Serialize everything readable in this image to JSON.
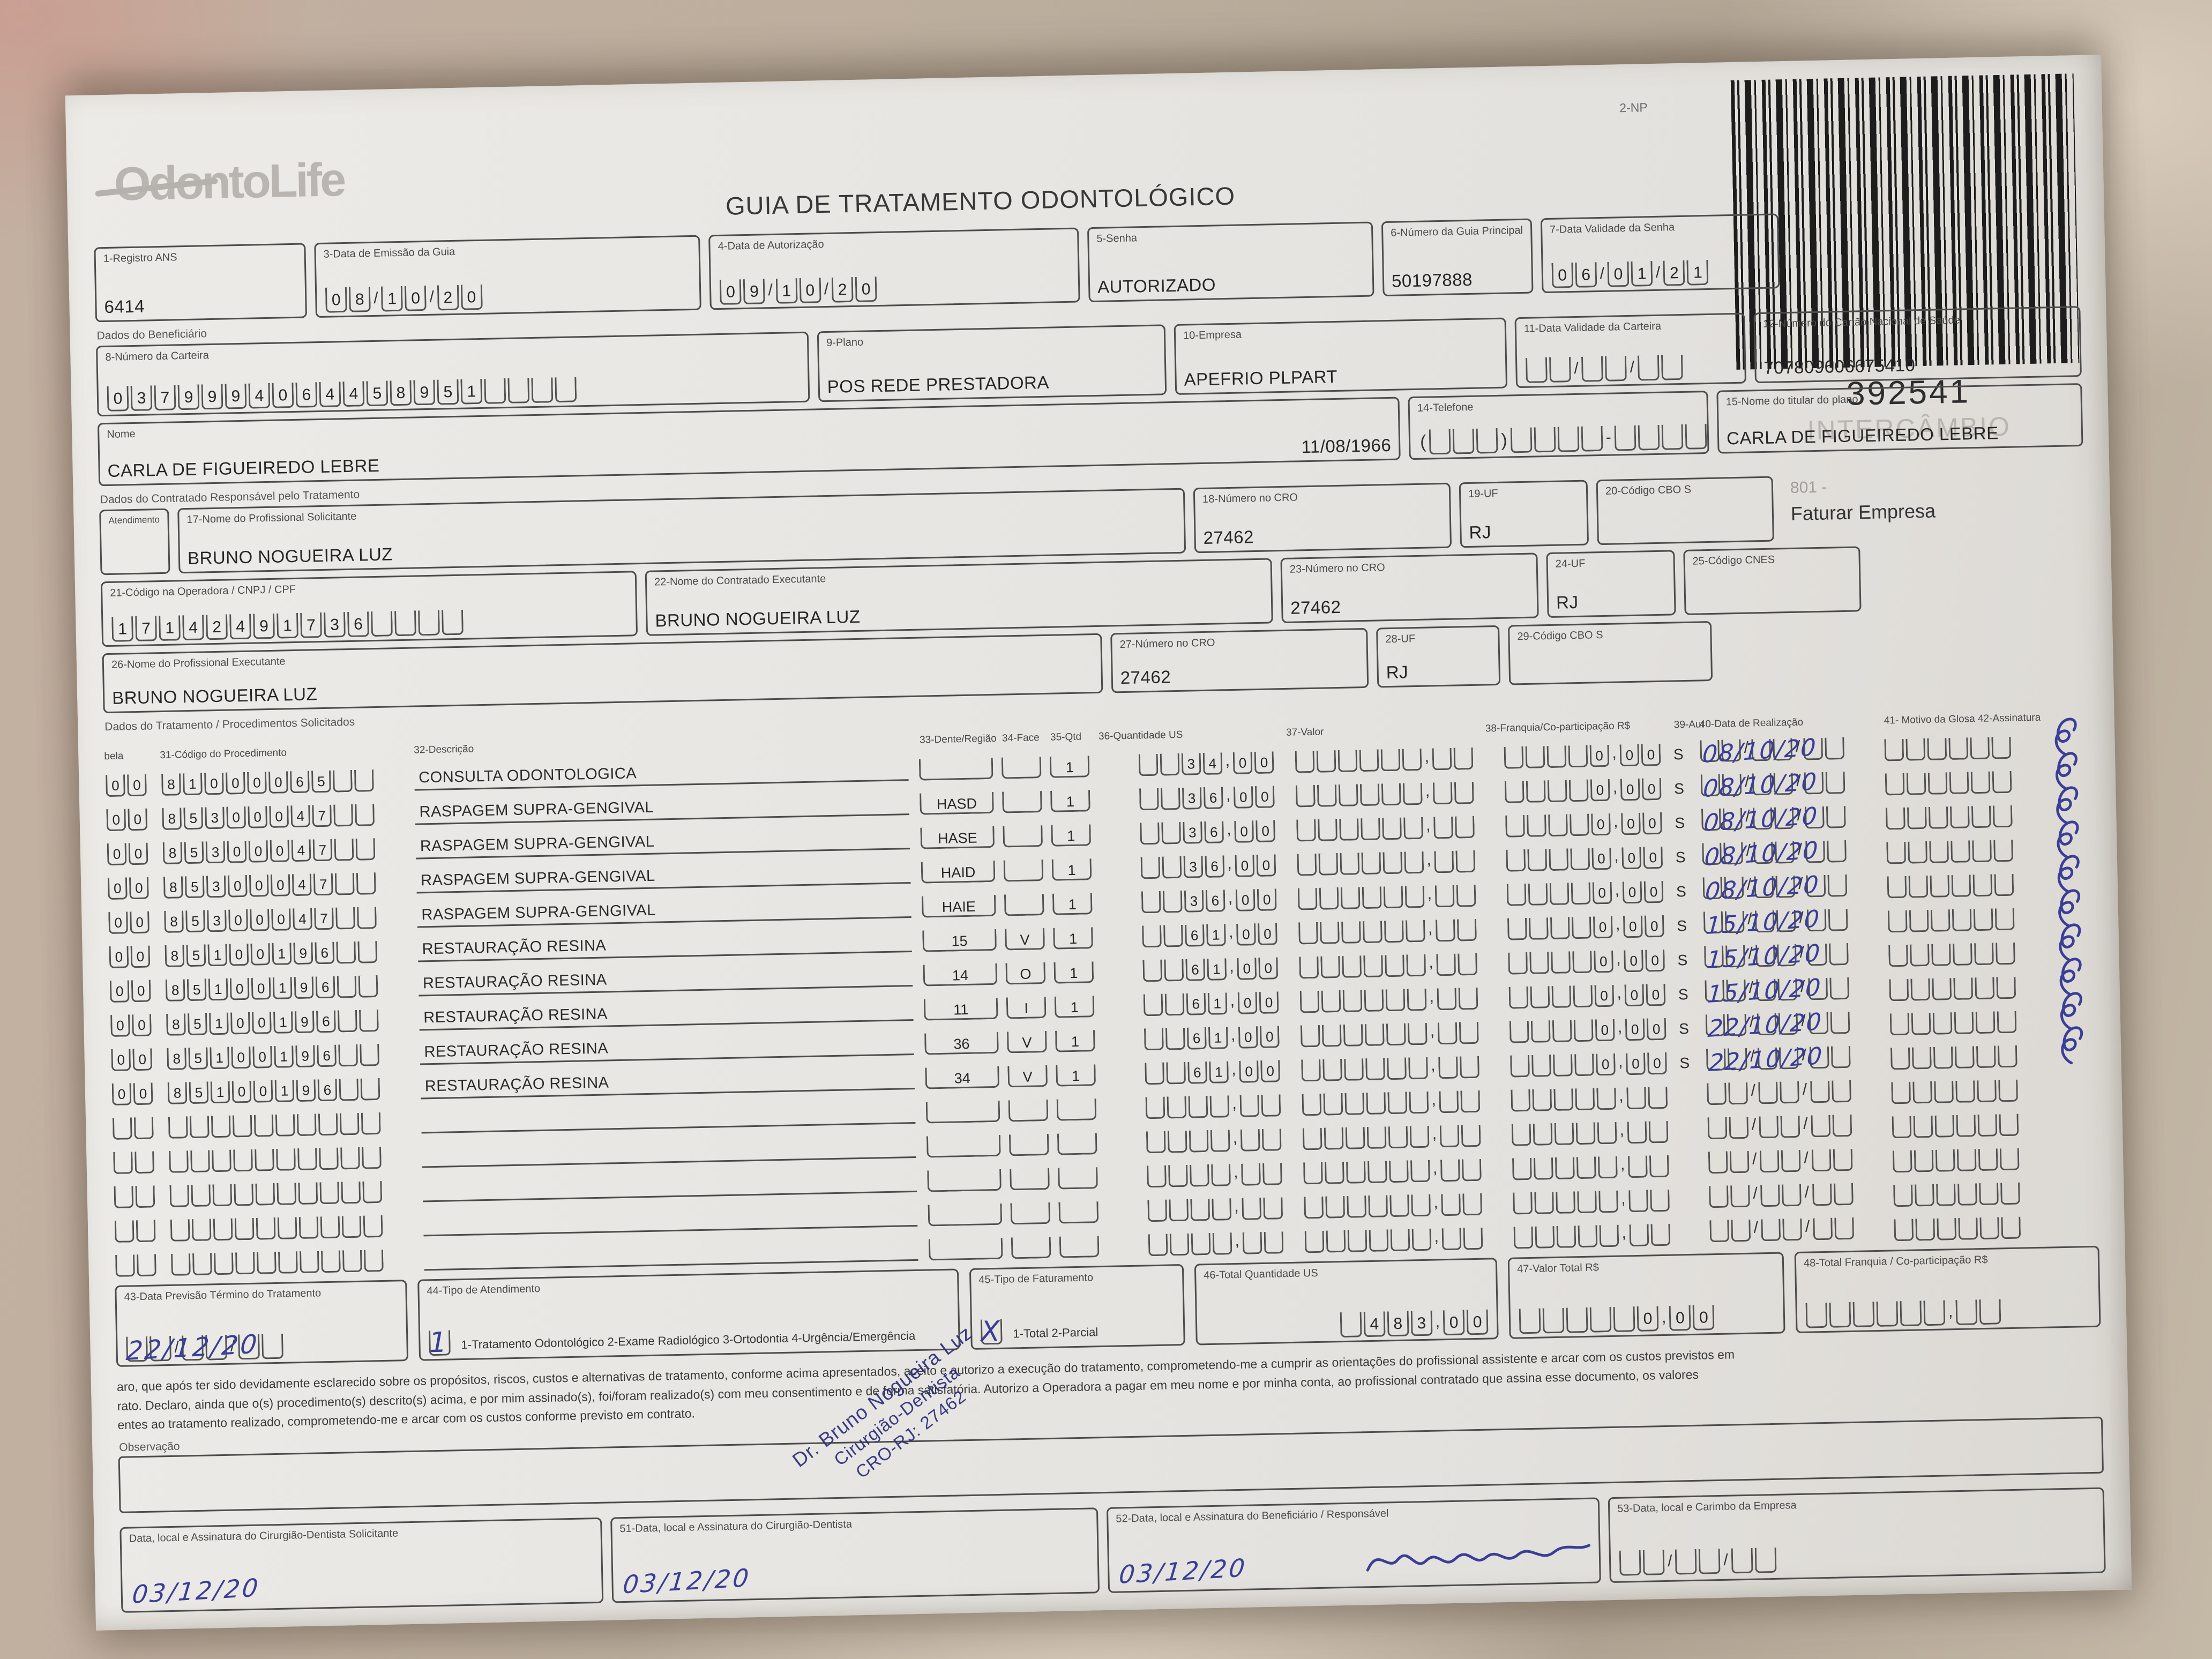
{
  "colors": {
    "ink": "#3b3e96",
    "paper": "#e9e7e3",
    "fabric": "#bcae9d",
    "stamp": "#2b2d7d"
  },
  "header": {
    "logo": "OdontoLife",
    "title": "GUIA DE TRATAMENTO ODONTOLÓGICO",
    "np": "2-NP",
    "barcode_number": "392541",
    "watermark": "INTERCÂMBIO"
  },
  "row1": {
    "ans_label": "1-Registro ANS",
    "ans_value": "6414",
    "emissao_label": "3-Data de Emissão da Guia",
    "emissao_value": "08/10/20",
    "autorizacao_label": "4-Data de Autorização",
    "autorizacao_value": "09/10/20",
    "senha_label": "5-Senha",
    "senha_value": "AUTORIZADO",
    "guia_label": "6-Número da Guia Principal",
    "guia_value": "50197888",
    "validade_senha_label": "7-Data Validade da Senha",
    "validade_senha_value": "06/01/21"
  },
  "beneficiario": {
    "section_label": "Dados do Beneficiário",
    "carteira_label": "8-Número da Carteira",
    "carteira_value": "0379994064458951",
    "plano_label": "9-Plano",
    "plano_value": "POS REDE PRESTADORA",
    "empresa_label": "10-Empresa",
    "empresa_value": "APEFRIO PLPART",
    "validade_carteira_label": "11-Data Validade da Carteira",
    "validade_carteira_value": "",
    "cns_label": "12-Número do Cartão Nacional de Saúde",
    "cns_value": "707809606675410",
    "nome_label": "Nome",
    "nome_value": "CARLA DE FIGUEIREDO LEBRE",
    "nascimento_value": "11/08/1966",
    "telefone_label": "14-Telefone",
    "titular_label": "15-Nome do titular do plano",
    "titular_value": "CARLA DE FIGUEIREDO LEBRE"
  },
  "contratado": {
    "section_label": "Dados do Contratado Responsável pelo Tratamento",
    "rn_label": "Atendimento a RN",
    "solicitante_label": "17-Nome do Profissional Solicitante",
    "solicitante_value": "BRUNO NOGUEIRA LUZ",
    "cro18_label": "18-Número no CRO",
    "cro18_value": "27462",
    "uf19_label": "19-UF",
    "uf19_value": "RJ",
    "cbo20_label": "20-Código CBO S",
    "cbo20_value": "",
    "faturar_code": "801 -",
    "faturar_label": "Faturar Empresa",
    "operadora_label": "21-Código na Operadora / CNPJ / CPF",
    "operadora_value": "17142491736",
    "executante_label": "22-Nome do Contratado Executante",
    "executante_value": "BRUNO NOGUEIRA LUZ",
    "cro23_label": "23-Número no CRO",
    "cro23_value": "27462",
    "uf24_label": "24-UF",
    "uf24_value": "RJ",
    "cnes_label": "25-Código CNES",
    "cnes_value": "",
    "prof_exec_label": "26-Nome do Profissional Executante",
    "prof_exec_value": "BRUNO NOGUEIRA LUZ",
    "cro27_label": "27-Número no CRO",
    "cro27_value": "27462",
    "uf28_label": "28-UF",
    "uf28_value": "RJ",
    "cbo29_label": "29-Código CBO S",
    "cbo29_value": ""
  },
  "tratamento": {
    "section_label": "Dados do Tratamento / Procedimentos Solicitados",
    "headers": {
      "tabela": "bela",
      "codigo": "31-Código do Procedimento",
      "descricao": "32-Descrição",
      "dente": "33-Dente/Região",
      "face": "34-Face",
      "qtd": "35-Qtd",
      "us": "36-Quantidade US",
      "valor": "37-Valor",
      "franquia": "38-Franquia/Co-participação R$",
      "aut": "39-Aut",
      "data": "40-Data de Realização",
      "glosa": "41- Motivo da Glosa 42-Assinatura"
    },
    "rows": [
      {
        "tabela": "00",
        "codigo": "81000065",
        "descricao": "CONSULTA ODONTOLOGICA",
        "dente": "",
        "face": "",
        "qtd": "1",
        "us": "34,00",
        "valor": "",
        "franquia": "0,00",
        "aut": "S",
        "data": "08/10/20"
      },
      {
        "tabela": "00",
        "codigo": "85300047",
        "descricao": "RASPAGEM SUPRA-GENGIVAL",
        "dente": "HASD",
        "face": "",
        "qtd": "1",
        "us": "36,00",
        "valor": "",
        "franquia": "0,00",
        "aut": "S",
        "data": "08/10/20"
      },
      {
        "tabela": "00",
        "codigo": "85300047",
        "descricao": "RASPAGEM SUPRA-GENGIVAL",
        "dente": "HASE",
        "face": "",
        "qtd": "1",
        "us": "36,00",
        "valor": "",
        "franquia": "0,00",
        "aut": "S",
        "data": "08/10/20"
      },
      {
        "tabela": "00",
        "codigo": "85300047",
        "descricao": "RASPAGEM SUPRA-GENGIVAL",
        "dente": "HAID",
        "face": "",
        "qtd": "1",
        "us": "36,00",
        "valor": "",
        "franquia": "0,00",
        "aut": "S",
        "data": "08/10/20"
      },
      {
        "tabela": "00",
        "codigo": "85300047",
        "descricao": "RASPAGEM SUPRA-GENGIVAL",
        "dente": "HAIE",
        "face": "",
        "qtd": "1",
        "us": "36,00",
        "valor": "",
        "franquia": "0,00",
        "aut": "S",
        "data": "08/10/20"
      },
      {
        "tabela": "00",
        "codigo": "85100196",
        "descricao": "RESTAURAÇÃO RESINA",
        "dente": "15",
        "face": "V",
        "qtd": "1",
        "us": "61,00",
        "valor": "",
        "franquia": "0,00",
        "aut": "S",
        "data": "15/10/20"
      },
      {
        "tabela": "00",
        "codigo": "85100196",
        "descricao": "RESTAURAÇÃO RESINA",
        "dente": "14",
        "face": "O",
        "qtd": "1",
        "us": "61,00",
        "valor": "",
        "franquia": "0,00",
        "aut": "S",
        "data": "15/10/20"
      },
      {
        "tabela": "00",
        "codigo": "85100196",
        "descricao": "RESTAURAÇÃO RESINA",
        "dente": "11",
        "face": "I",
        "qtd": "1",
        "us": "61,00",
        "valor": "",
        "franquia": "0,00",
        "aut": "S",
        "data": "15/10/20"
      },
      {
        "tabela": "00",
        "codigo": "85100196",
        "descricao": "RESTAURAÇÃO RESINA",
        "dente": "36",
        "face": "V",
        "qtd": "1",
        "us": "61,00",
        "valor": "",
        "franquia": "0,00",
        "aut": "S",
        "data": "22/10/20"
      },
      {
        "tabela": "00",
        "codigo": "85100196",
        "descricao": "RESTAURAÇÃO RESINA",
        "dente": "34",
        "face": "V",
        "qtd": "1",
        "us": "61,00",
        "valor": "",
        "franquia": "0,00",
        "aut": "S",
        "data": "22/10/20"
      },
      {
        "tabela": "",
        "codigo": "",
        "descricao": "",
        "dente": "",
        "face": "",
        "qtd": "",
        "us": "",
        "valor": "",
        "franquia": "",
        "aut": "",
        "data": ""
      },
      {
        "tabela": "",
        "codigo": "",
        "descricao": "",
        "dente": "",
        "face": "",
        "qtd": "",
        "us": "",
        "valor": "",
        "franquia": "",
        "aut": "",
        "data": ""
      },
      {
        "tabela": "",
        "codigo": "",
        "descricao": "",
        "dente": "",
        "face": "",
        "qtd": "",
        "us": "",
        "valor": "",
        "franquia": "",
        "aut": "",
        "data": ""
      },
      {
        "tabela": "",
        "codigo": "",
        "descricao": "",
        "dente": "",
        "face": "",
        "qtd": "",
        "us": "",
        "valor": "",
        "franquia": "",
        "aut": "",
        "data": ""
      },
      {
        "tabela": "",
        "codigo": "",
        "descricao": "",
        "dente": "",
        "face": "",
        "qtd": "",
        "us": "",
        "valor": "",
        "franquia": "",
        "aut": "",
        "data": ""
      }
    ]
  },
  "totais": {
    "previsao_label": "43-Data Previsão Término do Tratamento",
    "previsao_hand": "22/12/20",
    "tipo_atend_label": "44-Tipo de Atendimento",
    "tipo_atend_mark": "1",
    "tipo_atend_opts": "1-Tratamento Odontológico  2-Exame Radiológico  3-Ortodontia  4-Urgência/Emergência",
    "tipo_fat_label": "45-Tipo de Faturamento",
    "tipo_fat_mark": "X",
    "tipo_fat_opts": "1-Total  2-Parcial",
    "total_us_label": "46-Total Quantidade US",
    "total_us_value": "483,00",
    "valor_total_label": "47-Valor Total R$",
    "valor_total_value": "0,00",
    "total_franquia_label": "48-Total Franquia / Co-participação R$",
    "total_franquia_value": ""
  },
  "declaracao": {
    "line1": "aro, que após ter sido devidamente esclarecido sobre os propósitos, riscos, custos e alternativas de tratamento, conforme acima apresentados, aceito e autorizo a execução do tratamento, comprometendo-me a cumprir as orientações do profissional assistente e arcar com os custos previstos em",
    "line2": "rato. Declaro, ainda que o(s) procedimento(s) descrito(s) acima, e por mim assinado(s), foi/foram realizado(s) com meu consentimento e de forma satisfatória. Autorizo a Operadora a pagar em meu nome e por minha conta, ao profissional contratado que assina esse documento, os valores",
    "line3": "entes ao tratamento realizado, comprometendo-me e arcar com os custos conforme previsto em contrato."
  },
  "observacao_label": "Observação",
  "assinaturas": {
    "s50_label": "Data, local e Assinatura do Cirurgião-Dentista Solicitante",
    "s50_hand": "03/12/20",
    "s51_label": "51-Data, local e Assinatura do Cirurgião-Dentista",
    "s51_hand": "03/12/20",
    "s52_label": "52-Data, local e Assinatura do Beneficiário / Responsável",
    "s52_hand": "03/12/20",
    "s53_label": "53-Data, local e Carimbo da Empresa",
    "s53_value": ""
  },
  "stamp": {
    "line1": "Dr. Bruno Nogueira Luz",
    "line2": "Cirurgião-Dentista",
    "line3": "CRO-RJ: 27462"
  }
}
